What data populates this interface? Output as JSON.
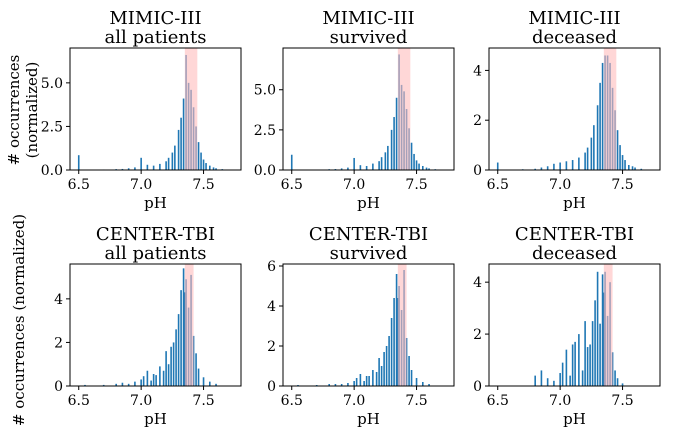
{
  "figure": {
    "ylabel_top_line1": "# occurrences",
    "ylabel_top_line2": "(normalized)",
    "ylabel_bottom": "# occurrences (normalized)"
  },
  "chart_data": [
    {
      "type": "bar",
      "title_line1": "MIMIC-III",
      "title_line2": "all patients",
      "xlabel": "pH",
      "xlim": [
        6.43,
        7.8
      ],
      "ylim": [
        0,
        7.0
      ],
      "xticks": [
        6.5,
        7.0,
        7.5
      ],
      "xtick_labels": [
        "6.5",
        "7.0",
        "7.5"
      ],
      "yticks": [
        0.0,
        2.5,
        5.0
      ],
      "ytick_labels": [
        "0.0",
        "2.5",
        "5.0"
      ],
      "band": [
        7.35,
        7.45
      ],
      "bin_width": 0.0125,
      "x": [
        6.5,
        6.6,
        6.7,
        6.8,
        6.85,
        6.9,
        6.95,
        7.0,
        7.05,
        7.1,
        7.15,
        7.2,
        7.22,
        7.25,
        7.27,
        7.3,
        7.32,
        7.34,
        7.36,
        7.38,
        7.4,
        7.42,
        7.44,
        7.46,
        7.48,
        7.5,
        7.52,
        7.55,
        7.58,
        7.6,
        7.65
      ],
      "values": [
        0.85,
        0.02,
        0.03,
        0.05,
        0.06,
        0.1,
        0.15,
        0.7,
        0.3,
        0.25,
        0.35,
        0.5,
        0.7,
        1.0,
        1.4,
        2.3,
        3.0,
        4.1,
        6.6,
        5.0,
        4.6,
        3.6,
        2.5,
        1.6,
        1.0,
        0.6,
        0.4,
        0.25,
        0.15,
        0.1,
        0.05
      ],
      "color": "#1f77b4",
      "band_color": "#ffbcbc"
    },
    {
      "type": "bar",
      "title_line1": "MIMIC-III",
      "title_line2": "survived",
      "xlabel": "pH",
      "xlim": [
        6.43,
        7.8
      ],
      "ylim": [
        0,
        7.6
      ],
      "xticks": [
        6.5,
        7.0,
        7.5
      ],
      "xtick_labels": [
        "6.5",
        "7.0",
        "7.5"
      ],
      "yticks": [
        0.0,
        2.5,
        5.0
      ],
      "ytick_labels": [
        "0.0",
        "2.5",
        "5.0"
      ],
      "band": [
        7.35,
        7.45
      ],
      "bin_width": 0.0125,
      "x": [
        6.5,
        6.6,
        6.7,
        6.8,
        6.85,
        6.9,
        6.95,
        7.0,
        7.05,
        7.1,
        7.15,
        7.2,
        7.22,
        7.25,
        7.27,
        7.3,
        7.32,
        7.34,
        7.36,
        7.38,
        7.4,
        7.42,
        7.44,
        7.46,
        7.48,
        7.5,
        7.52,
        7.55,
        7.58,
        7.6,
        7.65
      ],
      "values": [
        0.95,
        0.02,
        0.03,
        0.05,
        0.06,
        0.1,
        0.15,
        0.75,
        0.3,
        0.25,
        0.4,
        0.55,
        0.8,
        1.1,
        1.5,
        2.5,
        3.3,
        4.5,
        7.2,
        5.3,
        4.9,
        3.8,
        2.6,
        1.7,
        1.0,
        0.6,
        0.4,
        0.25,
        0.15,
        0.1,
        0.05
      ],
      "color": "#1f77b4",
      "band_color": "#ffbcbc"
    },
    {
      "type": "bar",
      "title_line1": "MIMIC-III",
      "title_line2": "deceased",
      "xlabel": "pH",
      "xlim": [
        6.43,
        7.8
      ],
      "ylim": [
        0,
        4.9
      ],
      "xticks": [
        6.5,
        7.0,
        7.5
      ],
      "xtick_labels": [
        "6.5",
        "7.0",
        "7.5"
      ],
      "yticks": [
        0,
        2,
        4
      ],
      "ytick_labels": [
        "0",
        "2",
        "4"
      ],
      "band": [
        7.35,
        7.45
      ],
      "bin_width": 0.0125,
      "x": [
        6.5,
        6.6,
        6.7,
        6.8,
        6.85,
        6.9,
        6.95,
        7.0,
        7.05,
        7.1,
        7.15,
        7.2,
        7.22,
        7.25,
        7.27,
        7.3,
        7.32,
        7.34,
        7.36,
        7.38,
        7.4,
        7.42,
        7.44,
        7.46,
        7.48,
        7.5,
        7.52,
        7.55,
        7.58,
        7.6,
        7.65
      ],
      "values": [
        0.3,
        0.02,
        0.03,
        0.05,
        0.1,
        0.15,
        0.25,
        0.3,
        0.35,
        0.4,
        0.5,
        0.7,
        0.9,
        1.3,
        1.8,
        2.6,
        3.5,
        4.3,
        4.6,
        4.6,
        4.3,
        3.3,
        2.4,
        1.6,
        1.0,
        0.6,
        0.4,
        0.2,
        0.15,
        0.1,
        0.05
      ],
      "color": "#1f77b4",
      "band_color": "#ffbcbc"
    },
    {
      "type": "bar",
      "title_line1": "CENTER-TBI",
      "title_line2": "all patients",
      "xlabel": "pH",
      "xlim": [
        6.43,
        7.8
      ],
      "ylim": [
        0,
        5.6
      ],
      "xticks": [
        6.5,
        7.0,
        7.5
      ],
      "xtick_labels": [
        "6.5",
        "7.0",
        "7.5"
      ],
      "yticks": [
        0,
        2,
        4
      ],
      "ytick_labels": [
        "0",
        "2",
        "4"
      ],
      "band": [
        7.35,
        7.42
      ],
      "bin_width": 0.0125,
      "x": [
        6.55,
        6.7,
        6.8,
        6.85,
        6.9,
        6.95,
        7.0,
        7.02,
        7.05,
        7.08,
        7.1,
        7.12,
        7.15,
        7.18,
        7.2,
        7.22,
        7.24,
        7.26,
        7.28,
        7.3,
        7.32,
        7.34,
        7.35,
        7.36,
        7.38,
        7.4,
        7.42,
        7.44,
        7.46,
        7.5,
        7.55,
        7.6
      ],
      "values": [
        0.05,
        0.05,
        0.1,
        0.15,
        0.1,
        0.2,
        0.3,
        0.45,
        0.7,
        0.25,
        0.55,
        0.5,
        0.9,
        0.7,
        1.6,
        1.0,
        1.8,
        2.0,
        2.6,
        3.3,
        4.4,
        5.4,
        4.3,
        4.9,
        3.6,
        5.1,
        2.3,
        1.5,
        0.8,
        0.4,
        0.2,
        0.1
      ],
      "color": "#1f77b4",
      "band_color": "#ffbcbc"
    },
    {
      "type": "bar",
      "title_line1": "CENTER-TBI",
      "title_line2": "survived",
      "xlabel": "pH",
      "xlim": [
        6.43,
        7.8
      ],
      "ylim": [
        0,
        6.1
      ],
      "xticks": [
        6.5,
        7.0,
        7.5
      ],
      "xtick_labels": [
        "6.5",
        "7.0",
        "7.5"
      ],
      "yticks": [
        0,
        2,
        4,
        6
      ],
      "ytick_labels": [
        "0",
        "2",
        "4",
        "6"
      ],
      "band": [
        7.35,
        7.42
      ],
      "bin_width": 0.0125,
      "x": [
        6.55,
        6.7,
        6.8,
        6.85,
        6.9,
        6.95,
        7.0,
        7.02,
        7.05,
        7.08,
        7.1,
        7.12,
        7.15,
        7.18,
        7.2,
        7.22,
        7.24,
        7.26,
        7.28,
        7.3,
        7.32,
        7.34,
        7.35,
        7.36,
        7.38,
        7.4,
        7.42,
        7.44,
        7.46,
        7.5,
        7.55,
        7.6
      ],
      "values": [
        0.05,
        0.05,
        0.1,
        0.1,
        0.1,
        0.15,
        0.25,
        0.4,
        0.6,
        0.25,
        0.5,
        0.5,
        0.8,
        0.7,
        1.4,
        1.0,
        1.7,
        2.0,
        2.5,
        3.4,
        4.4,
        5.6,
        4.4,
        5.0,
        3.8,
        5.8,
        2.4,
        1.5,
        0.8,
        0.4,
        0.2,
        0.1
      ],
      "color": "#1f77b4",
      "band_color": "#ffbcbc"
    },
    {
      "type": "bar",
      "title_line1": "CENTER-TBI",
      "title_line2": "deceased",
      "xlabel": "pH",
      "xlim": [
        6.43,
        7.8
      ],
      "ylim": [
        0,
        4.7
      ],
      "xticks": [
        6.5,
        7.0,
        7.5
      ],
      "xtick_labels": [
        "6.5",
        "7.0",
        "7.5"
      ],
      "yticks": [
        0,
        2,
        4
      ],
      "ytick_labels": [
        "0",
        "2",
        "4"
      ],
      "band": [
        7.35,
        7.42
      ],
      "bin_width": 0.0125,
      "x": [
        6.8,
        6.85,
        6.9,
        6.95,
        7.0,
        7.02,
        7.05,
        7.08,
        7.1,
        7.12,
        7.15,
        7.18,
        7.2,
        7.22,
        7.24,
        7.26,
        7.28,
        7.3,
        7.32,
        7.34,
        7.35,
        7.36,
        7.38,
        7.4,
        7.42,
        7.44,
        7.46,
        7.5
      ],
      "values": [
        0.4,
        0.6,
        0.3,
        0.2,
        0.5,
        0.9,
        1.4,
        0.4,
        1.6,
        1.7,
        2.0,
        0.6,
        2.5,
        1.5,
        1.6,
        2.5,
        3.3,
        4.4,
        2.4,
        4.3,
        3.6,
        4.4,
        2.7,
        4.0,
        1.3,
        0.6,
        0.3,
        0.1
      ],
      "color": "#1f77b4",
      "band_color": "#ffbcbc"
    }
  ]
}
